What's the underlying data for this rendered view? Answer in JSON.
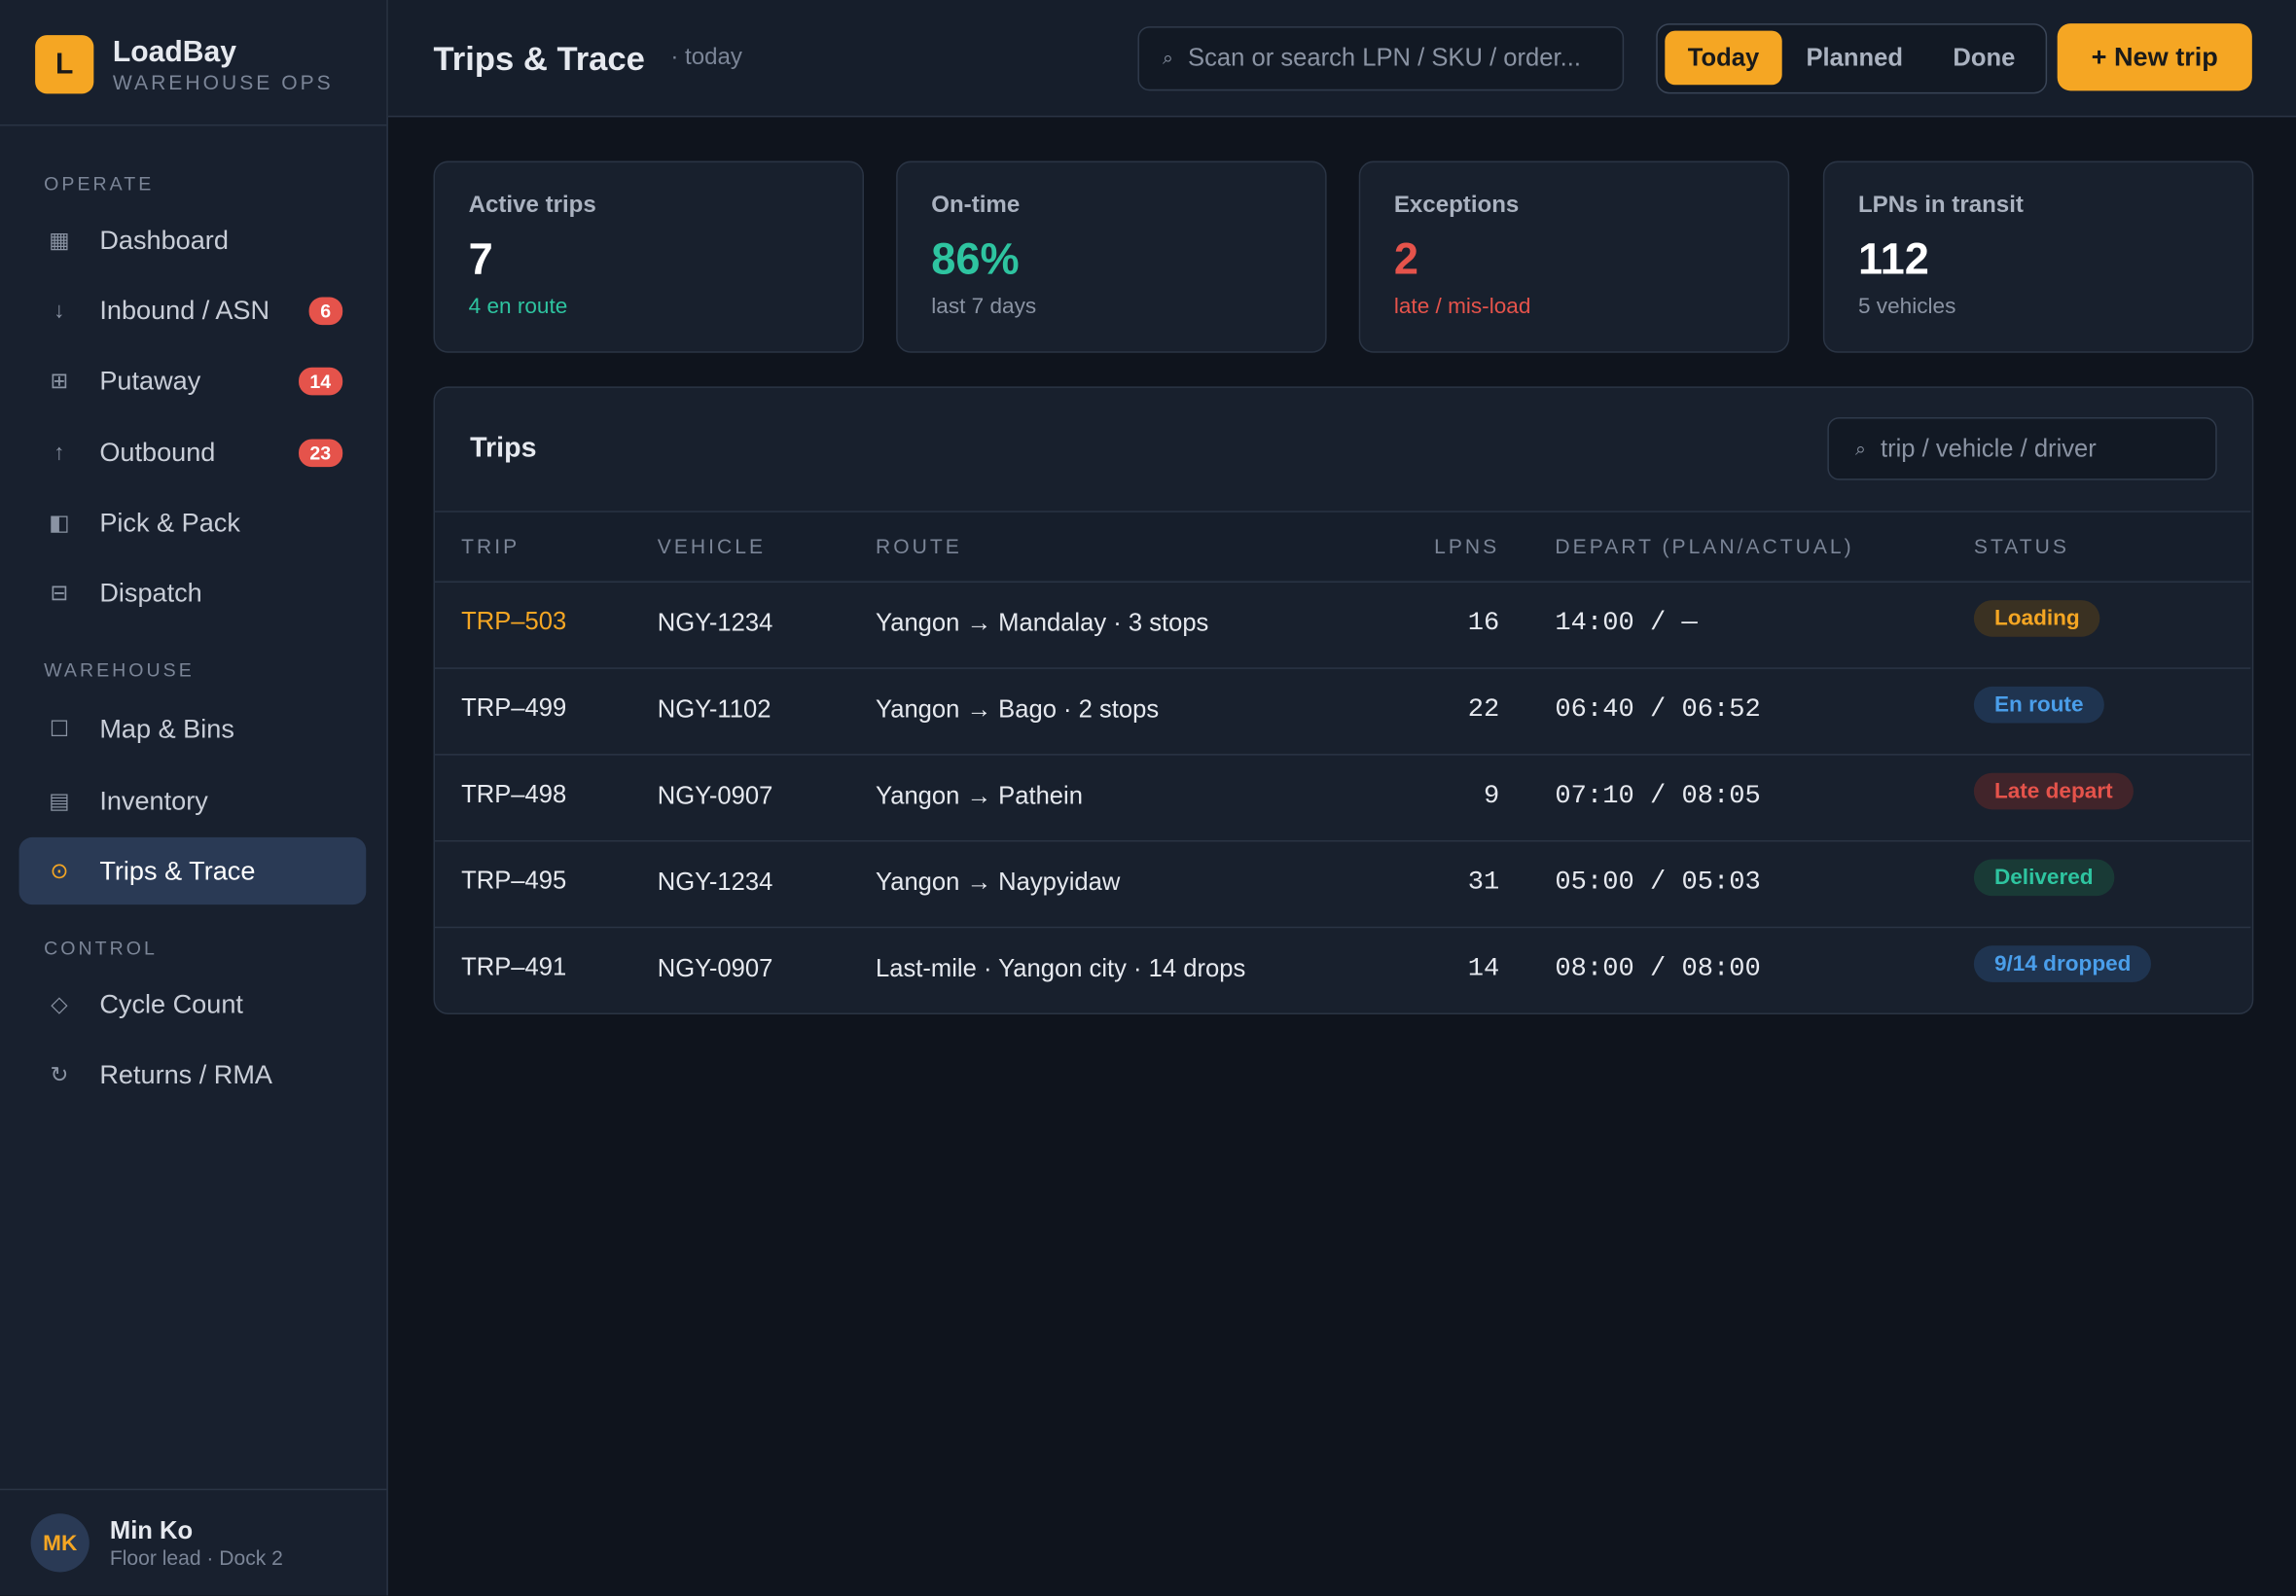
{
  "brand": {
    "initial": "L",
    "name": "LoadBay",
    "tagline": "WAREHOUSE OPS"
  },
  "nav": [
    {
      "title": "OPERATE",
      "items": [
        {
          "icon": "▦",
          "label": "Dashboard"
        },
        {
          "icon": "↓",
          "label": "Inbound / ASN",
          "badge": 6
        },
        {
          "icon": "⊞",
          "label": "Putaway",
          "badge": 14
        },
        {
          "icon": "↑",
          "label": "Outbound",
          "badge": 23
        },
        {
          "icon": "◧",
          "label": "Pick & Pack"
        },
        {
          "icon": "⊟",
          "label": "Dispatch"
        }
      ]
    },
    {
      "title": "WAREHOUSE",
      "items": [
        {
          "icon": "☐",
          "label": "Map & Bins"
        },
        {
          "icon": "▤",
          "label": "Inventory"
        },
        {
          "icon": "⊙",
          "label": "Trips & Trace"
        }
      ]
    },
    {
      "title": "CONTROL",
      "items": [
        {
          "icon": "◇",
          "label": "Cycle Count"
        },
        {
          "icon": "↻",
          "label": "Returns / RMA"
        }
      ]
    }
  ],
  "user": {
    "initials": "MK",
    "name": "Min Ko",
    "role": "Floor lead · Dock 2"
  },
  "header": {
    "title": "Trips & Trace",
    "subtitle": "· today",
    "search_icon": "⌕",
    "search": "Scan or search LPN / SKU / order...",
    "tabs": [
      "Today",
      "Planned",
      "Done"
    ],
    "button": "+ New trip"
  },
  "stats": [
    {
      "label": "Active trips",
      "value": "7",
      "note": "4 en route"
    },
    {
      "label": "On-time",
      "value": "86%",
      "note": "last 7 days"
    },
    {
      "label": "Exceptions",
      "value": "2",
      "note": "late / mis-load"
    },
    {
      "label": "LPNs in transit",
      "value": "112",
      "note": "5 vehicles"
    }
  ],
  "table": {
    "title": "Trips",
    "search_icon": "⌕",
    "search": "trip / vehicle / driver",
    "columns": [
      "TRIP",
      "VEHICLE",
      "ROUTE",
      "LPNS",
      "DEPART (PLAN/ACTUAL)",
      "STATUS"
    ],
    "rows": [
      [
        "TRP–503",
        "NGY-1234",
        "Yangon → Mandalay · 3 stops",
        16,
        "14:00 / —",
        "Loading"
      ],
      [
        "TRP–499",
        "NGY-1102",
        "Yangon → Bago · 2 stops",
        22,
        "06:40 / 06:52",
        "En route"
      ],
      [
        "TRP–498",
        "NGY-0907",
        "Yangon → Pathein",
        9,
        "07:10 / 08:05",
        "Late depart"
      ],
      [
        "TRP–495",
        "NGY-1234",
        "Yangon → Naypyidaw",
        31,
        "05:00 / 05:03",
        "Delivered"
      ],
      [
        "TRP–491",
        "NGY-0907",
        "Last-mile · Yangon city · 14 drops",
        14,
        "08:00 / 08:00",
        "9/14 dropped"
      ]
    ]
  }
}
